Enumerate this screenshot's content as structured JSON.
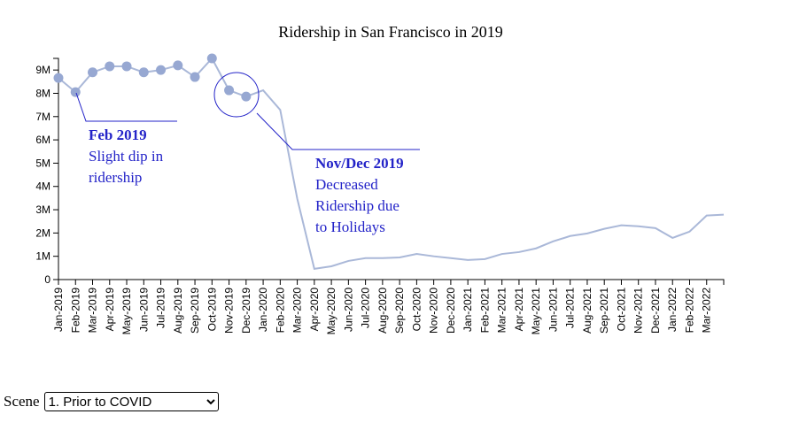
{
  "chart_data": {
    "type": "line",
    "title": "Ridership in San Francisco in 2019",
    "categories": [
      "Jan-2019",
      "Feb-2019",
      "Mar-2019",
      "Apr-2019",
      "May-2019",
      "Jun-2019",
      "Jul-2019",
      "Aug-2019",
      "Sep-2019",
      "Oct-2019",
      "Nov-2019",
      "Dec-2019",
      "Jan-2020",
      "Feb-2020",
      "Mar-2020",
      "Apr-2020",
      "May-2020",
      "Jun-2020",
      "Jul-2020",
      "Aug-2020",
      "Sep-2020",
      "Oct-2020",
      "Nov-2020",
      "Dec-2020",
      "Jan-2021",
      "Feb-2021",
      "Mar-2021",
      "Apr-2021",
      "May-2021",
      "Jun-2021",
      "Jul-2021",
      "Aug-2021",
      "Sep-2021",
      "Oct-2021",
      "Nov-2021",
      "Dec-2021",
      "Jan-2022",
      "Feb-2022",
      "Mar-2022",
      null
    ],
    "values": [
      8660000,
      8050000,
      8900000,
      9160000,
      9160000,
      8900000,
      9000000,
      9200000,
      8700000,
      9500000,
      8130000,
      7860000,
      8130000,
      7290000,
      3470000,
      460000,
      570000,
      800000,
      920000,
      920000,
      950000,
      1100000,
      1000000,
      920000,
      840000,
      880000,
      1100000,
      1180000,
      1340000,
      1640000,
      1870000,
      1980000,
      2180000,
      2330000,
      2290000,
      2210000,
      1790000,
      2060000,
      2750000,
      2790000
    ],
    "line_color": "#aab8d8",
    "marker_color": "#97a8d2",
    "ylim": [
      0,
      9500000
    ],
    "yticks": [
      0,
      {
        "value": 1000000,
        "label": "1M"
      },
      {
        "value": 2000000,
        "label": "2M"
      },
      {
        "value": 3000000,
        "label": "3M"
      },
      {
        "value": 4000000,
        "label": "4M"
      },
      {
        "value": 5000000,
        "label": "5M"
      },
      {
        "value": 6000000,
        "label": "6M"
      },
      {
        "value": 7000000,
        "label": "7M"
      },
      {
        "value": 8000000,
        "label": "8M"
      },
      {
        "value": 9000000,
        "label": "9M"
      }
    ],
    "annotations": [
      {
        "title": "Feb 2019",
        "lines": [
          "Slight dip in",
          "ridership"
        ]
      },
      {
        "title": "Nov/Dec 2019",
        "lines": [
          "Decreased",
          "Ridership due",
          "to Holidays"
        ]
      }
    ]
  },
  "controls": {
    "label": "Scene",
    "selected": "1. Prior to COVID"
  }
}
